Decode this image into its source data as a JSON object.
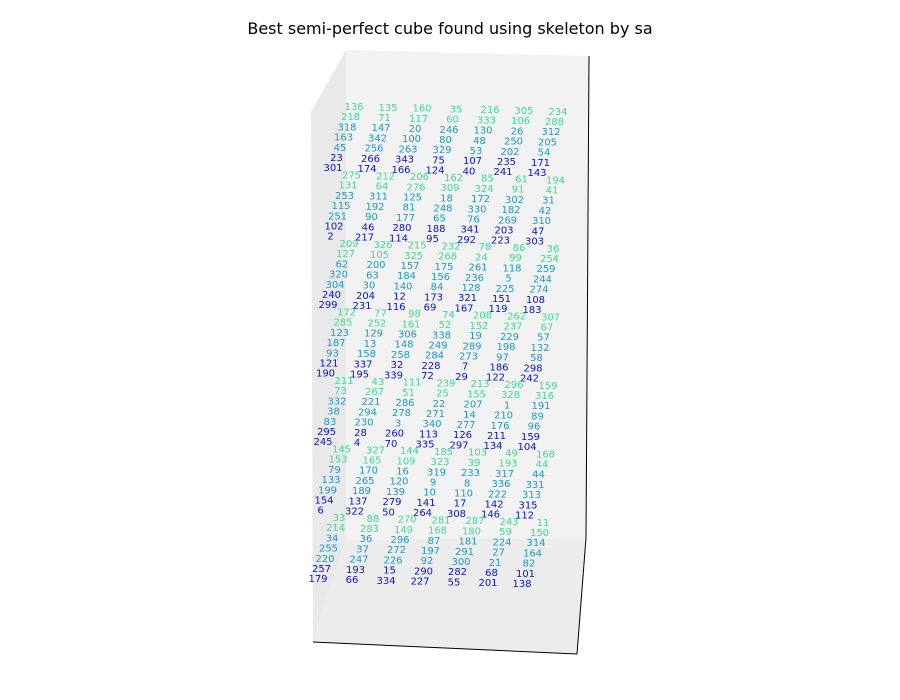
{
  "chart_data": {
    "type": "scatter",
    "title": "Best semi-perfect cube found using skeleton by sa",
    "projection": "3d",
    "grid": false,
    "axes_visible": false,
    "pane_color": "#f2f2f2",
    "colormap": [
      "#3cdc96",
      "#1a9ac8",
      "#0a14c8"
    ],
    "layers": [
      {
        "layer": 0,
        "rows": [
          [
            136,
            135,
            160,
            35,
            216,
            305,
            234
          ],
          [
            218,
            71,
            117,
            60,
            333,
            106,
            288
          ],
          [
            318,
            147,
            20,
            246,
            130,
            26,
            312
          ],
          [
            163,
            342,
            100,
            80,
            48,
            250,
            205
          ],
          [
            45,
            256,
            263,
            329,
            53,
            202,
            54
          ],
          [
            23,
            266,
            343,
            75,
            107,
            235,
            171
          ],
          [
            301,
            174,
            166,
            124,
            40,
            241,
            143
          ]
        ]
      },
      {
        "layer": 1,
        "rows": [
          [
            275,
            212,
            206,
            162,
            85,
            61,
            194
          ],
          [
            131,
            64,
            276,
            309,
            324,
            91,
            41
          ],
          [
            253,
            311,
            125,
            18,
            172,
            302,
            31
          ],
          [
            115,
            192,
            81,
            248,
            330,
            182,
            42
          ],
          [
            251,
            90,
            177,
            65,
            76,
            269,
            310
          ],
          [
            102,
            46,
            280,
            188,
            341,
            203,
            47
          ],
          [
            2,
            217,
            114,
            95,
            292,
            223,
            303
          ]
        ]
      },
      {
        "layer": 2,
        "rows": [
          [
            209,
            326,
            215,
            232,
            78,
            86,
            36
          ],
          [
            127,
            105,
            325,
            268,
            24,
            99,
            254
          ],
          [
            62,
            200,
            157,
            175,
            261,
            118,
            259
          ],
          [
            320,
            63,
            184,
            156,
            236,
            5,
            244
          ],
          [
            304,
            30,
            140,
            84,
            128,
            225,
            274
          ],
          [
            240,
            204,
            12,
            173,
            321,
            151,
            108
          ],
          [
            299,
            231,
            116,
            69,
            167,
            119,
            183
          ]
        ]
      },
      {
        "layer": 3,
        "rows": [
          [
            172,
            77,
            98,
            74,
            208,
            262,
            307
          ],
          [
            285,
            252,
            161,
            52,
            152,
            237,
            67
          ],
          [
            123,
            129,
            306,
            338,
            19,
            229,
            57
          ],
          [
            187,
            13,
            148,
            249,
            289,
            198,
            132
          ],
          [
            93,
            158,
            258,
            284,
            273,
            97,
            58
          ],
          [
            121,
            337,
            32,
            228,
            7,
            186,
            298
          ],
          [
            190,
            195,
            339,
            72,
            29,
            122,
            242
          ]
        ]
      },
      {
        "layer": 4,
        "rows": [
          [
            211,
            43,
            111,
            239,
            213,
            296,
            159
          ],
          [
            73,
            267,
            51,
            25,
            155,
            328,
            316
          ],
          [
            332,
            221,
            286,
            22,
            207,
            1,
            191
          ],
          [
            38,
            294,
            278,
            271,
            14,
            210,
            89
          ],
          [
            83,
            230,
            3,
            340,
            277,
            176,
            96
          ],
          [
            295,
            28,
            260,
            113,
            126,
            211,
            159
          ],
          [
            245,
            4,
            70,
            335,
            297,
            134,
            104
          ]
        ]
      },
      {
        "layer": 5,
        "rows": [
          [
            145,
            327,
            144,
            185,
            103,
            49,
            168
          ],
          [
            153,
            165,
            109,
            323,
            39,
            193,
            44
          ],
          [
            79,
            170,
            16,
            319,
            233,
            317,
            44
          ],
          [
            133,
            265,
            120,
            9,
            8,
            336,
            331
          ],
          [
            199,
            189,
            139,
            10,
            110,
            222,
            313
          ],
          [
            154,
            137,
            279,
            141,
            17,
            142,
            315
          ],
          [
            6,
            322,
            50,
            264,
            308,
            146,
            112
          ]
        ]
      },
      {
        "layer": 6,
        "rows": [
          [
            33,
            88,
            270,
            281,
            287,
            243,
            11
          ],
          [
            214,
            283,
            149,
            168,
            180,
            59,
            150
          ],
          [
            34,
            36,
            296,
            87,
            181,
            224,
            314
          ],
          [
            255,
            37,
            272,
            197,
            291,
            27,
            164
          ],
          [
            220,
            247,
            226,
            92,
            300,
            21,
            82
          ],
          [
            257,
            193,
            15,
            290,
            282,
            68,
            101
          ],
          [
            179,
            66,
            334,
            227,
            55,
            201,
            138
          ]
        ]
      }
    ]
  }
}
